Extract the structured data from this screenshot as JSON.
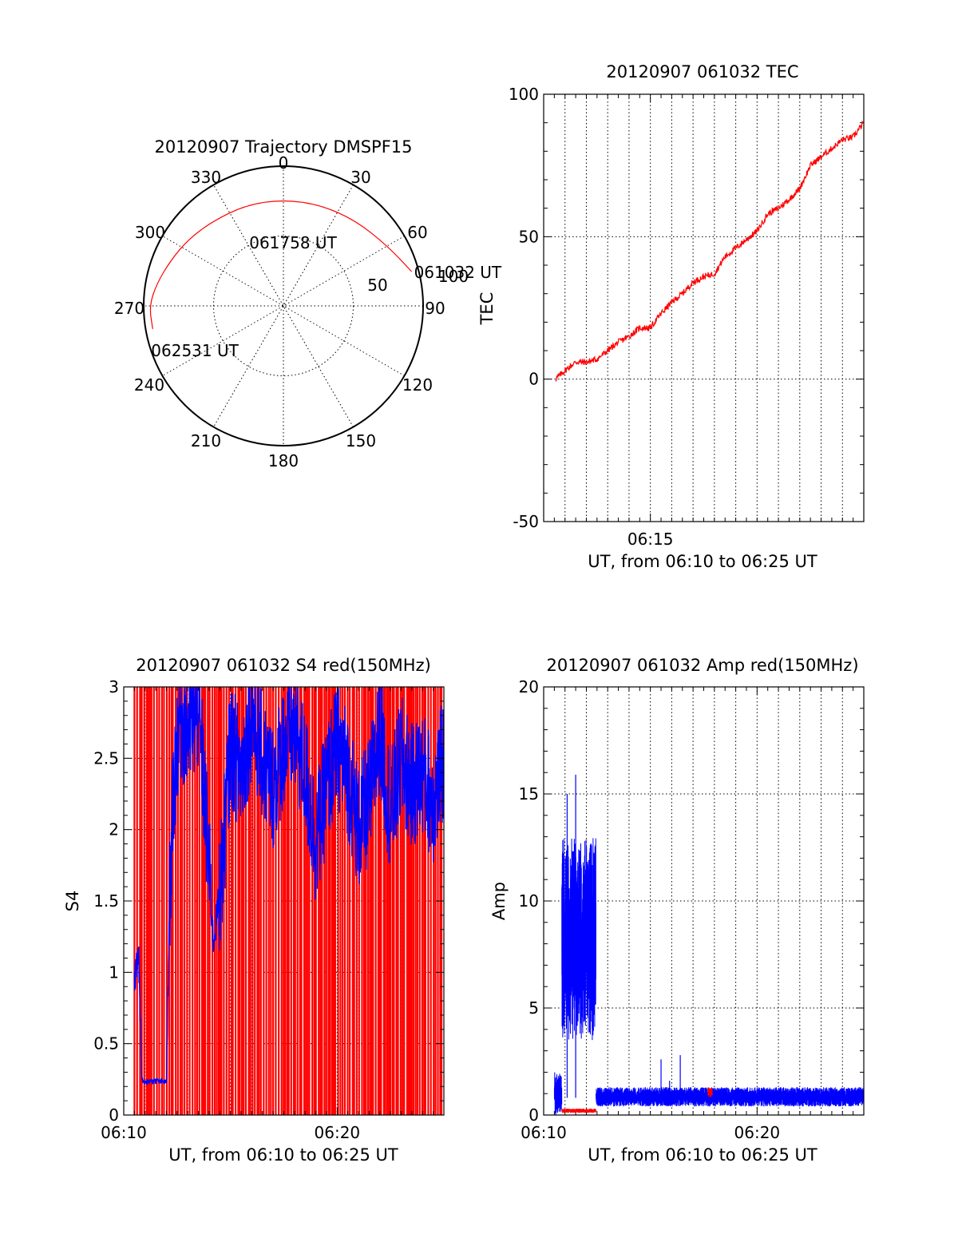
{
  "chart_data": [
    {
      "id": "trajectory",
      "type": "polar",
      "title": "20120907 Trajectory DMSPF15",
      "azimuth_labels": [
        "0",
        "30",
        "60",
        "90",
        "120",
        "150",
        "180",
        "210",
        "240",
        "270",
        "300",
        "330"
      ],
      "radial_labels": [
        "50",
        "100"
      ],
      "r_range": [
        0,
        100
      ],
      "grid": true,
      "colors": {
        "track": "#ff0000"
      },
      "track": [
        {
          "az": 75,
          "r": 95
        },
        {
          "az": 60,
          "r": 86
        },
        {
          "az": 40,
          "r": 80
        },
        {
          "az": 20,
          "r": 77
        },
        {
          "az": 0,
          "r": 76
        },
        {
          "az": -20,
          "r": 77
        },
        {
          "az": -40,
          "r": 79
        },
        {
          "az": -55,
          "r": 83
        },
        {
          "az": -68,
          "r": 87
        },
        {
          "az": -80,
          "r": 92
        },
        {
          "az": -90,
          "r": 96
        },
        {
          "az": -100,
          "r": 95
        }
      ],
      "annotations": [
        {
          "text": "061032 UT",
          "az": 75,
          "r": 95
        },
        {
          "text": "061758 UT",
          "az": -5,
          "r": 72
        },
        {
          "text": "062531 UT",
          "az": -100,
          "r": 95
        }
      ]
    },
    {
      "id": "tec",
      "type": "line",
      "title": "20120907 061032 TEC",
      "xlabel": "UT, from 06:10 to 06:25 UT",
      "ylabel": "TEC",
      "xlim": [
        10.0,
        25.0
      ],
      "ylim": [
        -50,
        100
      ],
      "x_unit": "minutes after 06:00 UT",
      "xticks": [
        {
          "x": 15,
          "label": "06:15"
        }
      ],
      "yticks": [
        {
          "y": -50,
          "label": "-50"
        },
        {
          "y": 0,
          "label": "0"
        },
        {
          "y": 50,
          "label": "50"
        },
        {
          "y": 100,
          "label": "100"
        }
      ],
      "grid": true,
      "colors": {
        "line": "#ff0000"
      },
      "series": [
        {
          "x": [
            10.55,
            11.0,
            11.5,
            12.0,
            12.5,
            13.0,
            13.5,
            14.0,
            14.5,
            15.0,
            15.5,
            16.0,
            16.5,
            17.0,
            17.5,
            18.0,
            18.5,
            19.0,
            19.5,
            20.0,
            20.5,
            21.0,
            21.5,
            22.0,
            22.5,
            23.0,
            23.5,
            24.0,
            24.5,
            25.0
          ],
          "y": [
            0,
            3,
            6,
            6,
            7,
            10,
            13,
            15,
            18,
            18,
            23,
            27,
            30,
            34,
            36,
            37,
            43,
            46,
            49,
            52,
            58,
            60,
            63,
            67,
            75,
            78,
            81,
            84,
            85,
            90
          ]
        }
      ]
    },
    {
      "id": "s4",
      "type": "line",
      "title": "20120907 061032 S4 red(150MHz)",
      "xlabel": "UT, from 06:10 to 06:25 UT",
      "ylabel": "S4",
      "xlim": [
        10.0,
        25.0
      ],
      "ylim": [
        0,
        3
      ],
      "x_unit": "minutes after 06:00 UT",
      "xticks": [
        {
          "x": 10,
          "label": "06:10"
        },
        {
          "x": 20,
          "label": "06:20"
        }
      ],
      "yticks": [
        {
          "y": 0,
          "label": "0"
        },
        {
          "y": 0.5,
          "label": "0.5"
        },
        {
          "y": 1,
          "label": "1"
        },
        {
          "y": 1.5,
          "label": "1.5"
        },
        {
          "y": 2,
          "label": "2"
        },
        {
          "y": 2.5,
          "label": "2.5"
        },
        {
          "y": 3,
          "label": "3"
        }
      ],
      "grid": true,
      "colors": {
        "red": "#ff0000",
        "blue": "#0000ff"
      },
      "red_spikes": {
        "x_start": 10.5,
        "x_end": 25.0,
        "baseline": 0,
        "top": 3
      },
      "series": [
        {
          "color": "blue",
          "x": [
            10.5,
            10.6,
            10.7,
            10.85,
            11.0,
            11.5,
            12.0,
            12.15,
            12.35,
            12.6,
            13.0,
            13.5,
            13.8,
            14.2,
            14.6,
            15.0,
            15.5,
            16.0,
            16.5,
            17.0,
            17.5,
            18.0,
            18.5,
            19.0,
            19.5,
            20.0,
            20.5,
            21.0,
            21.5,
            22.0,
            22.5,
            23.0,
            23.5,
            24.0,
            24.5,
            25.0
          ],
          "y": [
            0.9,
            1.05,
            1.1,
            0.25,
            0.23,
            0.24,
            0.23,
            1.5,
            2.3,
            2.8,
            2.7,
            2.85,
            2.2,
            1.2,
            1.7,
            2.6,
            2.4,
            2.8,
            2.5,
            2.3,
            2.6,
            2.7,
            2.4,
            1.9,
            2.3,
            2.6,
            2.4,
            2.0,
            2.2,
            2.7,
            2.1,
            2.5,
            2.3,
            2.4,
            2.2,
            2.5
          ]
        }
      ]
    },
    {
      "id": "amp",
      "type": "line",
      "title": "20120907 061032 Amp red(150MHz)",
      "xlabel": "UT, from 06:10 to 06:25 UT",
      "ylabel": "Amp",
      "xlim": [
        10.0,
        25.0
      ],
      "ylim": [
        0,
        20
      ],
      "x_unit": "minutes after 06:00 UT",
      "xticks": [
        {
          "x": 10,
          "label": "06:10"
        },
        {
          "x": 20,
          "label": "06:20"
        }
      ],
      "yticks": [
        {
          "y": 0,
          "label": "0"
        },
        {
          "y": 5,
          "label": "5"
        },
        {
          "y": 10,
          "label": "10"
        },
        {
          "y": 15,
          "label": "15"
        },
        {
          "y": 20,
          "label": "20"
        }
      ],
      "grid": true,
      "colors": {
        "red": "#ff0000",
        "blue": "#0000ff"
      },
      "series": [
        {
          "color": "blue",
          "segments": [
            {
              "x_start": 10.5,
              "x_end": 10.85,
              "low": 0.0,
              "high": 2.0
            },
            {
              "x_start": 10.85,
              "x_end": 12.45,
              "low": 3.5,
              "high": 13.0
            },
            {
              "x_start": 12.45,
              "x_end": 25.0,
              "low": 0.4,
              "high": 1.3
            }
          ],
          "peaks": [
            {
              "x": 11.5,
              "y": 15.9
            },
            {
              "x": 11.1,
              "y": 15.0
            },
            {
              "x": 15.5,
              "y": 2.6
            },
            {
              "x": 16.4,
              "y": 2.8
            },
            {
              "x": 15.9,
              "y": 1.6
            }
          ]
        },
        {
          "color": "red",
          "segments": [
            {
              "x_start": 10.85,
              "x_end": 12.45,
              "low": 0.1,
              "high": 0.3
            },
            {
              "x_start": 17.7,
              "x_end": 17.9,
              "low": 0.8,
              "high": 1.3
            }
          ]
        }
      ]
    }
  ]
}
